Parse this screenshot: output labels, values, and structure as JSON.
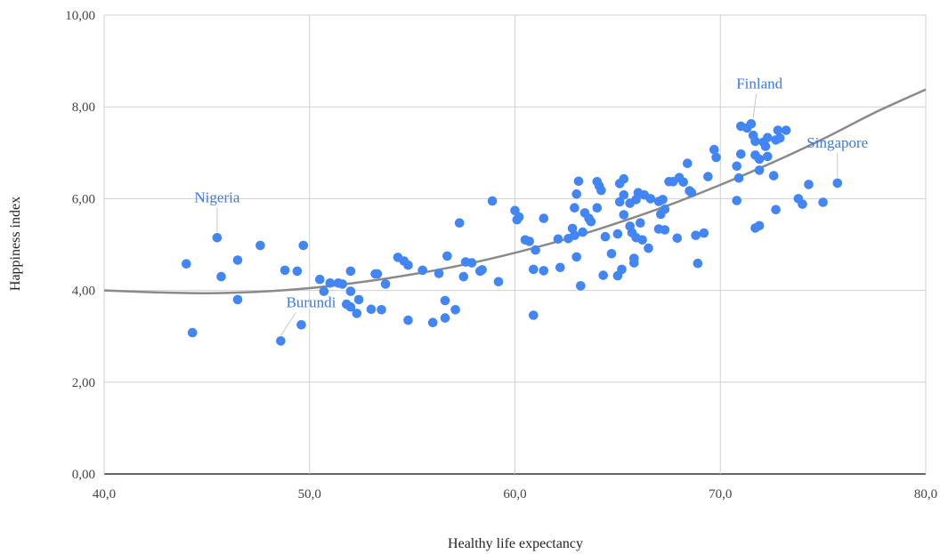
{
  "chart_data": {
    "type": "scatter",
    "xlabel": "Healthy life expectancy",
    "ylabel": "Happiness index",
    "xlim": [
      40,
      80
    ],
    "ylim": [
      0,
      10
    ],
    "x_ticks": [
      {
        "value": 40,
        "label": "40,0"
      },
      {
        "value": 50,
        "label": "50,0"
      },
      {
        "value": 60,
        "label": "60,0"
      },
      {
        "value": 70,
        "label": "70,0"
      },
      {
        "value": 80,
        "label": "80,0"
      }
    ],
    "y_ticks": [
      {
        "value": 0,
        "label": "0,00"
      },
      {
        "value": 2,
        "label": "2,00"
      },
      {
        "value": 4,
        "label": "4,00"
      },
      {
        "value": 6,
        "label": "6,00"
      },
      {
        "value": 8,
        "label": "8,00"
      },
      {
        "value": 10,
        "label": "10,00"
      }
    ],
    "grid": true,
    "point_color": "#4285f4",
    "trendline": {
      "type": "polynomial",
      "color": "#8a8a8a",
      "points": [
        [
          40,
          4.0
        ],
        [
          42.5,
          3.96
        ],
        [
          45,
          3.94
        ],
        [
          47.5,
          3.97
        ],
        [
          50,
          4.05
        ],
        [
          52.5,
          4.18
        ],
        [
          55,
          4.35
        ],
        [
          57.5,
          4.56
        ],
        [
          60,
          4.82
        ],
        [
          62.5,
          5.12
        ],
        [
          65,
          5.47
        ],
        [
          67.5,
          5.86
        ],
        [
          70,
          6.3
        ],
        [
          72.5,
          6.78
        ],
        [
          75,
          7.3
        ],
        [
          77.5,
          7.87
        ],
        [
          80,
          8.38
        ]
      ]
    },
    "annotations": [
      {
        "text": "Finland",
        "x": 71.6,
        "y": 7.63
      },
      {
        "text": "Singapore",
        "x": 75.7,
        "y": 6.34
      },
      {
        "text": "Nigeria",
        "x": 45.5,
        "y": 5.15
      },
      {
        "text": "Burundi",
        "x": 48.6,
        "y": 2.9
      }
    ],
    "points": [
      [
        44.0,
        4.58
      ],
      [
        44.3,
        3.08
      ],
      [
        45.5,
        5.15
      ],
      [
        45.7,
        4.3
      ],
      [
        46.5,
        4.66
      ],
      [
        46.5,
        3.8
      ],
      [
        47.6,
        4.98
      ],
      [
        48.6,
        2.9
      ],
      [
        48.8,
        4.44
      ],
      [
        49.4,
        4.42
      ],
      [
        49.6,
        3.25
      ],
      [
        49.7,
        4.98
      ],
      [
        50.5,
        4.24
      ],
      [
        50.7,
        3.98
      ],
      [
        51.0,
        4.16
      ],
      [
        51.4,
        4.16
      ],
      [
        51.6,
        4.14
      ],
      [
        51.8,
        3.7
      ],
      [
        52.0,
        3.98
      ],
      [
        52.0,
        3.64
      ],
      [
        52.0,
        4.42
      ],
      [
        52.3,
        3.5
      ],
      [
        52.4,
        3.8
      ],
      [
        53.0,
        3.59
      ],
      [
        53.2,
        4.36
      ],
      [
        53.3,
        4.36
      ],
      [
        53.5,
        3.58
      ],
      [
        53.7,
        4.14
      ],
      [
        54.3,
        4.72
      ],
      [
        54.6,
        4.64
      ],
      [
        54.8,
        4.55
      ],
      [
        54.8,
        3.35
      ],
      [
        55.5,
        4.44
      ],
      [
        56.0,
        3.3
      ],
      [
        56.3,
        4.37
      ],
      [
        56.6,
        3.78
      ],
      [
        56.6,
        3.4
      ],
      [
        56.7,
        4.75
      ],
      [
        57.1,
        3.58
      ],
      [
        57.3,
        5.47
      ],
      [
        57.5,
        4.3
      ],
      [
        57.6,
        4.62
      ],
      [
        57.9,
        4.6
      ],
      [
        58.3,
        4.42
      ],
      [
        58.4,
        4.45
      ],
      [
        58.9,
        5.95
      ],
      [
        59.2,
        4.19
      ],
      [
        60.0,
        5.74
      ],
      [
        60.1,
        5.54
      ],
      [
        60.2,
        5.6
      ],
      [
        60.5,
        5.1
      ],
      [
        60.7,
        5.07
      ],
      [
        60.9,
        4.46
      ],
      [
        60.9,
        3.46
      ],
      [
        61.0,
        4.88
      ],
      [
        61.4,
        5.57
      ],
      [
        61.4,
        4.43
      ],
      [
        62.1,
        5.12
      ],
      [
        62.2,
        4.5
      ],
      [
        62.6,
        5.13
      ],
      [
        62.8,
        5.35
      ],
      [
        62.9,
        5.8
      ],
      [
        62.9,
        5.2
      ],
      [
        63.0,
        6.1
      ],
      [
        63.0,
        4.73
      ],
      [
        63.1,
        6.38
      ],
      [
        63.2,
        4.1
      ],
      [
        63.3,
        5.27
      ],
      [
        63.4,
        5.69
      ],
      [
        63.6,
        5.57
      ],
      [
        63.7,
        5.5
      ],
      [
        64.0,
        6.37
      ],
      [
        64.0,
        5.8
      ],
      [
        64.1,
        6.28
      ],
      [
        64.2,
        6.18
      ],
      [
        64.3,
        4.33
      ],
      [
        64.4,
        5.17
      ],
      [
        64.7,
        4.8
      ],
      [
        65.0,
        4.32
      ],
      [
        65.0,
        5.23
      ],
      [
        65.1,
        6.33
      ],
      [
        65.1,
        5.93
      ],
      [
        65.2,
        4.46
      ],
      [
        65.3,
        6.43
      ],
      [
        65.3,
        6.08
      ],
      [
        65.3,
        5.65
      ],
      [
        65.6,
        5.9
      ],
      [
        65.6,
        5.4
      ],
      [
        65.7,
        5.26
      ],
      [
        65.8,
        4.7
      ],
      [
        65.8,
        4.6
      ],
      [
        65.9,
        5.98
      ],
      [
        65.9,
        5.15
      ],
      [
        66.0,
        6.13
      ],
      [
        66.1,
        5.47
      ],
      [
        66.2,
        5.1
      ],
      [
        66.3,
        6.08
      ],
      [
        66.5,
        4.92
      ],
      [
        66.6,
        6.0
      ],
      [
        67.0,
        5.94
      ],
      [
        67.0,
        5.34
      ],
      [
        67.1,
        5.66
      ],
      [
        67.2,
        5.98
      ],
      [
        67.3,
        5.32
      ],
      [
        67.3,
        5.77
      ],
      [
        67.5,
        6.37
      ],
      [
        67.7,
        6.37
      ],
      [
        67.9,
        5.14
      ],
      [
        68.0,
        6.46
      ],
      [
        68.2,
        6.36
      ],
      [
        68.4,
        6.77
      ],
      [
        68.5,
        6.17
      ],
      [
        68.6,
        6.13
      ],
      [
        68.8,
        5.2
      ],
      [
        68.9,
        4.59
      ],
      [
        69.2,
        5.25
      ],
      [
        69.4,
        6.48
      ],
      [
        69.7,
        7.07
      ],
      [
        69.8,
        6.9
      ],
      [
        70.8,
        6.71
      ],
      [
        70.8,
        5.96
      ],
      [
        70.9,
        6.45
      ],
      [
        71.0,
        7.58
      ],
      [
        71.0,
        6.97
      ],
      [
        71.3,
        7.54
      ],
      [
        71.5,
        7.63
      ],
      [
        71.6,
        7.38
      ],
      [
        71.7,
        7.25
      ],
      [
        71.7,
        6.95
      ],
      [
        71.7,
        5.36
      ],
      [
        71.9,
        6.86
      ],
      [
        71.9,
        6.62
      ],
      [
        71.9,
        5.41
      ],
      [
        72.1,
        7.23
      ],
      [
        72.2,
        7.14
      ],
      [
        72.3,
        7.33
      ],
      [
        72.3,
        6.92
      ],
      [
        72.6,
        6.5
      ],
      [
        72.7,
        7.28
      ],
      [
        72.7,
        5.76
      ],
      [
        72.8,
        7.49
      ],
      [
        72.9,
        7.32
      ],
      [
        73.2,
        7.49
      ],
      [
        73.8,
        6.0
      ],
      [
        74.0,
        5.88
      ],
      [
        74.3,
        6.31
      ],
      [
        75.0,
        5.92
      ],
      [
        75.7,
        6.34
      ]
    ]
  }
}
